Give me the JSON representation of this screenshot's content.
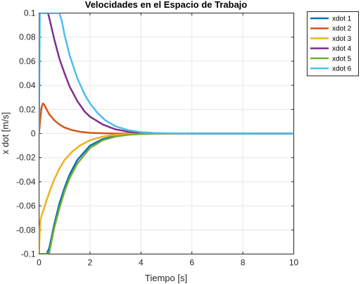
{
  "chart_data": {
    "type": "line",
    "title": "Velocidades en el Espacio de Trabajo",
    "xlabel": "Tiempo [s]",
    "ylabel": "x dot [m/s]",
    "xlim": [
      0,
      10
    ],
    "ylim": [
      -0.1,
      0.1
    ],
    "xticks": [
      0,
      2,
      4,
      6,
      8,
      10
    ],
    "xtick_labels": [
      "0",
      "2",
      "4",
      "6",
      "8",
      "10"
    ],
    "yticks": [
      -0.1,
      -0.08,
      -0.06,
      -0.04,
      -0.02,
      0,
      0.02,
      0.04,
      0.06,
      0.08,
      0.1
    ],
    "ytick_labels": [
      "-0.1",
      "-0.08",
      "-0.06",
      "-0.04",
      "-0.02",
      "0",
      "0.02",
      "0.04",
      "0.06",
      "0.08",
      "0.1"
    ],
    "grid": true,
    "legend_position": "outside top-right",
    "series": [
      {
        "name": "xdot 1",
        "color": "#0072BD",
        "x": [
          0,
          0.2,
          0.3,
          0.4,
          0.5,
          0.6,
          0.8,
          1.0,
          1.2,
          1.5,
          2.0,
          2.5,
          3.0,
          3.5,
          4.0,
          5.0,
          6.0,
          8.0,
          10.0
        ],
        "y": [
          -0.1,
          -0.1,
          -0.1,
          -0.095,
          -0.085,
          -0.075,
          -0.058,
          -0.045,
          -0.034,
          -0.022,
          -0.01,
          -0.0045,
          -0.002,
          -0.0008,
          -0.0003,
          0,
          0,
          0,
          0
        ]
      },
      {
        "name": "xdot 2",
        "color": "#D95319",
        "x": [
          0,
          0.05,
          0.1,
          0.15,
          0.2,
          0.3,
          0.4,
          0.6,
          0.8,
          1.0,
          1.3,
          1.6,
          2.0,
          2.5,
          3.0,
          4.0,
          6.0,
          8.0,
          10.0
        ],
        "y": [
          0,
          0.012,
          0.022,
          0.025,
          0.024,
          0.02,
          0.016,
          0.011,
          0.0075,
          0.005,
          0.0028,
          0.0015,
          0.0006,
          0.0002,
          0,
          0,
          0,
          0,
          0
        ]
      },
      {
        "name": "xdot 3",
        "color": "#EDB120",
        "x": [
          0,
          0.03,
          0.06,
          0.1,
          0.2,
          0.3,
          0.45,
          0.6,
          0.8,
          1.0,
          1.3,
          1.6,
          2.0,
          2.5,
          3.0,
          3.5,
          4.0,
          6.0,
          10.0
        ],
        "y": [
          -0.1,
          -0.08,
          -0.071,
          -0.068,
          -0.062,
          -0.055,
          -0.046,
          -0.038,
          -0.029,
          -0.022,
          -0.015,
          -0.01,
          -0.0055,
          -0.0025,
          -0.001,
          -0.0004,
          -0.0001,
          0,
          0
        ]
      },
      {
        "name": "xdot 4",
        "color": "#7E2F8E",
        "x": [
          0.35,
          0.4,
          0.5,
          0.6,
          0.8,
          1.0,
          1.2,
          1.5,
          1.8,
          2.0,
          2.5,
          3.0,
          3.5,
          4.0,
          5.0,
          6.0,
          8.0,
          10.0
        ],
        "y": [
          0.1,
          0.096,
          0.087,
          0.078,
          0.062,
          0.05,
          0.039,
          0.027,
          0.018,
          0.014,
          0.0075,
          0.0035,
          0.0015,
          0.0006,
          0.0001,
          0,
          0,
          0
        ]
      },
      {
        "name": "xdot 5",
        "color": "#77AC30",
        "x": [
          0,
          0.2,
          0.3,
          0.4,
          0.5,
          0.6,
          0.8,
          1.0,
          1.2,
          1.5,
          2.0,
          2.5,
          3.0,
          3.5,
          4.0,
          5.0,
          6.0,
          8.0,
          10.0
        ],
        "y": [
          -0.1,
          -0.1,
          -0.1,
          -0.099,
          -0.088,
          -0.078,
          -0.062,
          -0.048,
          -0.037,
          -0.025,
          -0.012,
          -0.0055,
          -0.0025,
          -0.001,
          -0.0004,
          0,
          0,
          0,
          0
        ]
      },
      {
        "name": "xdot 6",
        "color": "#4DBEEE",
        "x": [
          0,
          0.03,
          0.8,
          0.9,
          1.0,
          1.2,
          1.5,
          1.8,
          2.0,
          2.3,
          2.6,
          3.0,
          3.5,
          4.0,
          4.5,
          5.0,
          6.0,
          8.0,
          10.0
        ],
        "y": [
          0,
          0.1,
          0.1,
          0.093,
          0.082,
          0.065,
          0.046,
          0.032,
          0.025,
          0.017,
          0.011,
          0.006,
          0.0028,
          0.0012,
          0.0005,
          0.0002,
          0,
          0,
          0
        ]
      }
    ]
  }
}
